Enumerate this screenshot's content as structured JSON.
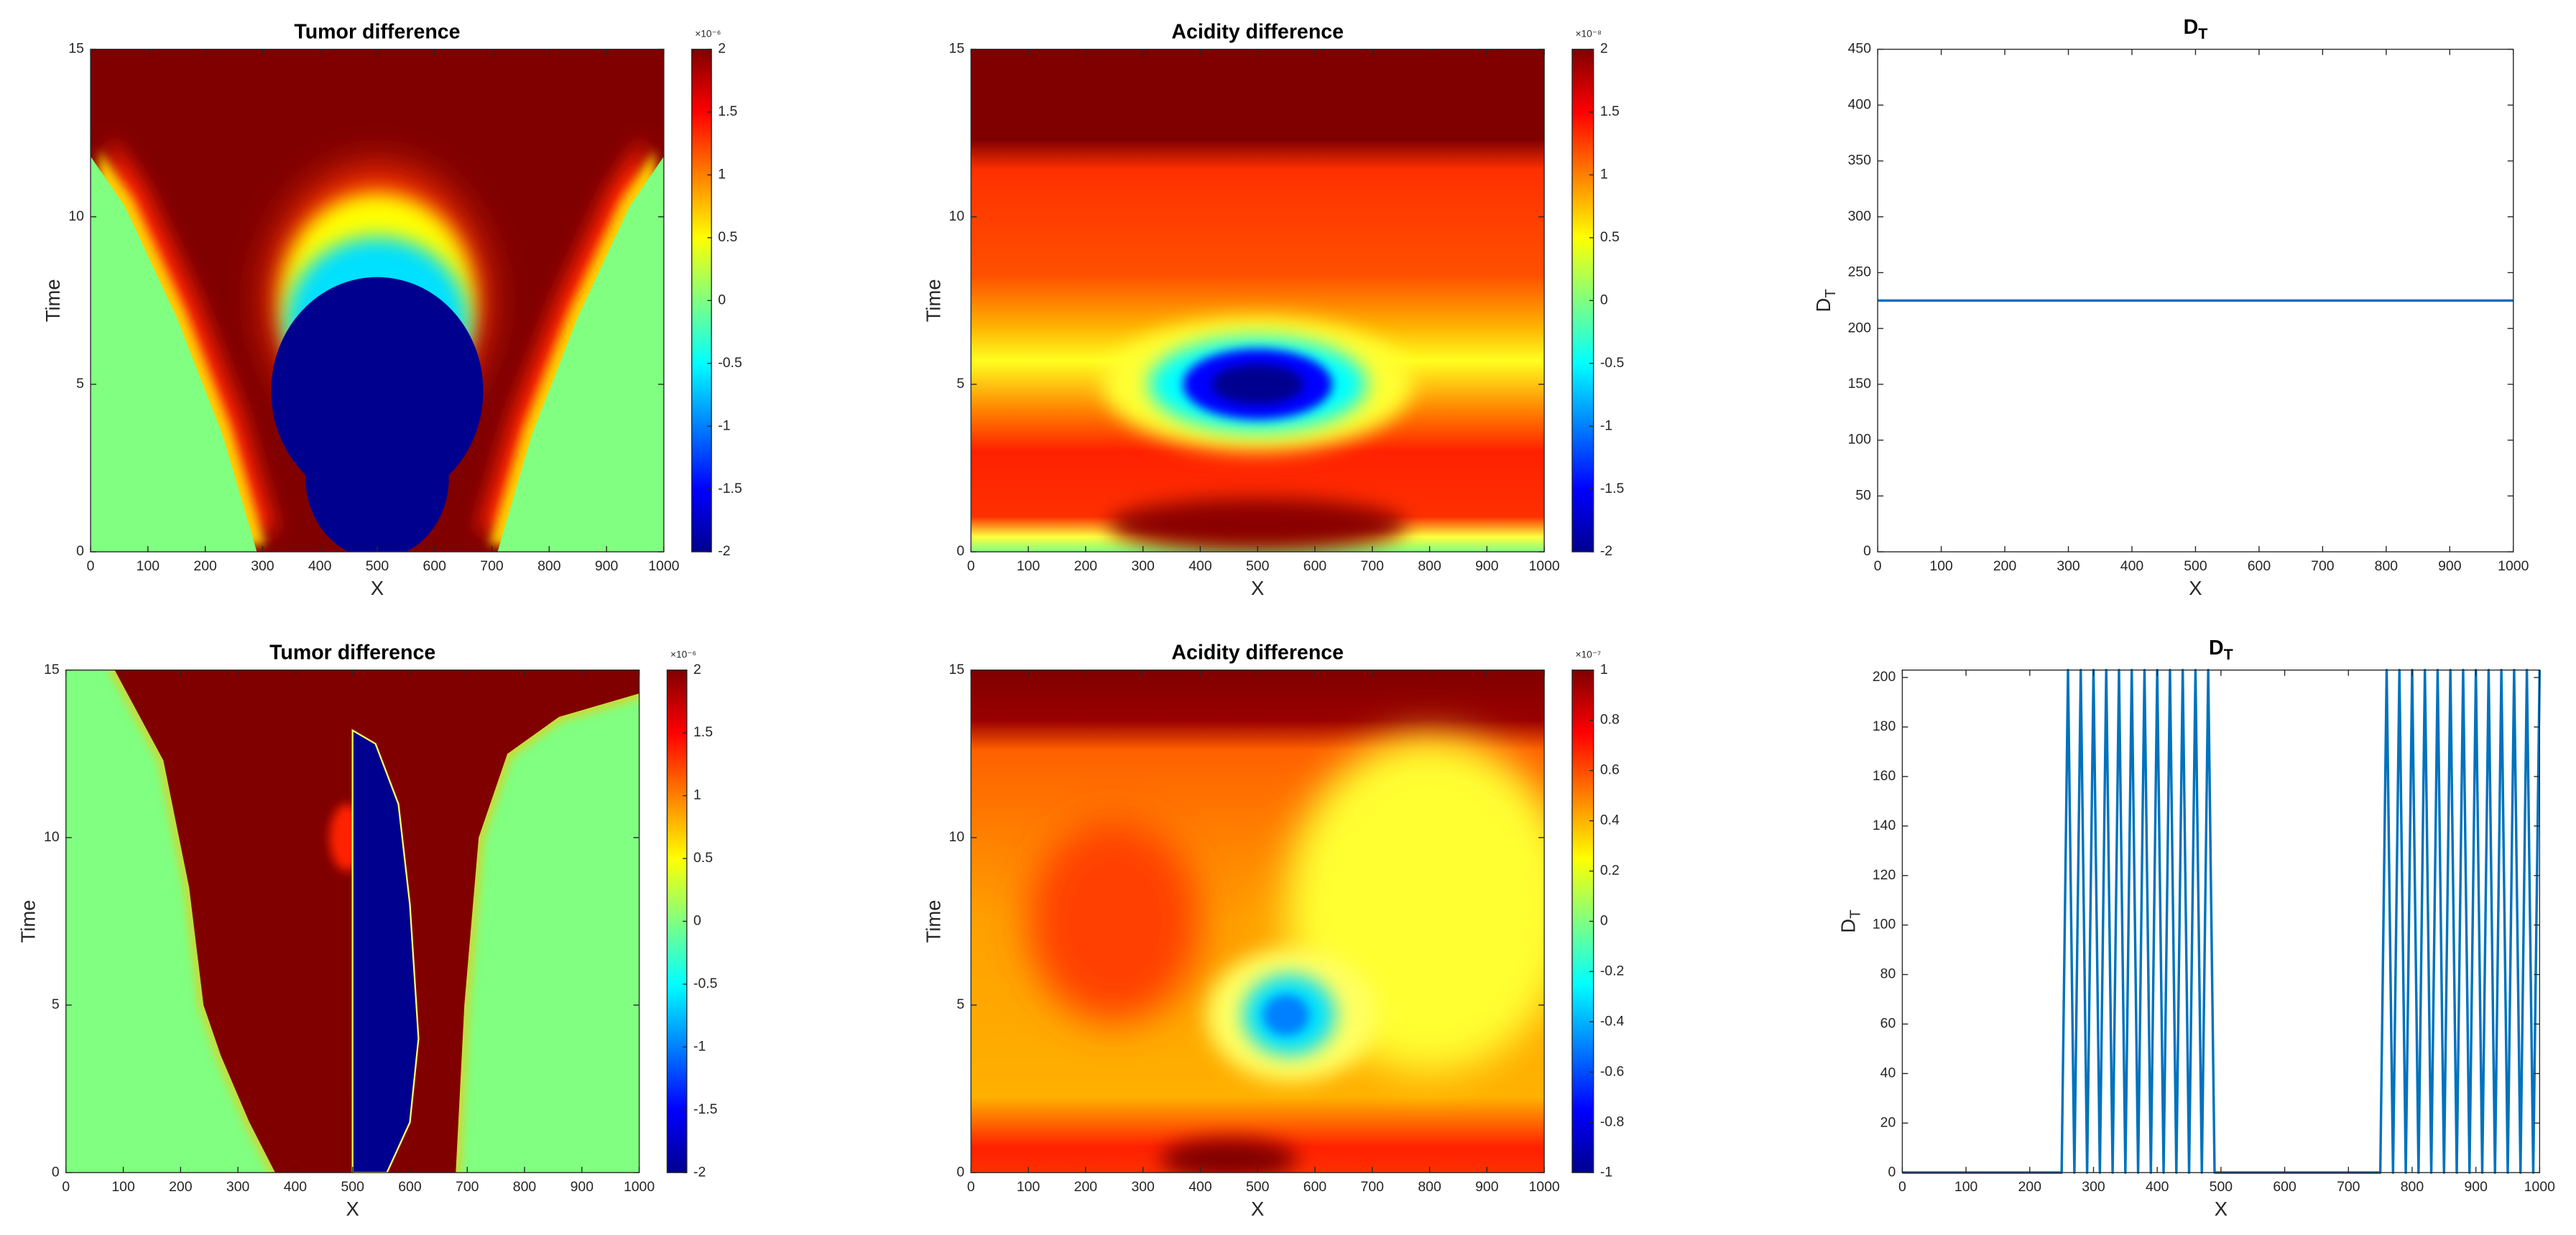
{
  "chart_data": [
    {
      "type": "heatmap",
      "title": "Tumor difference",
      "xlabel": "X",
      "ylabel": "Time",
      "xlim": [
        0,
        1000
      ],
      "ylim": [
        0,
        15
      ],
      "xticks": [
        0,
        100,
        200,
        300,
        400,
        500,
        600,
        700,
        800,
        900,
        1000
      ],
      "yticks": [
        0,
        5,
        10,
        15
      ],
      "clim": [
        -2,
        2
      ],
      "cticks": [
        -2,
        -1.5,
        -1,
        -0.5,
        0,
        0.5,
        1,
        1.5,
        2
      ],
      "colorbar_exponent": "×10⁻⁶"
    },
    {
      "type": "heatmap",
      "title": "Acidity difference",
      "xlabel": "X",
      "ylabel": "Time",
      "xlim": [
        0,
        1000
      ],
      "ylim": [
        0,
        15
      ],
      "xticks": [
        0,
        100,
        200,
        300,
        400,
        500,
        600,
        700,
        800,
        900,
        1000
      ],
      "yticks": [
        0,
        5,
        10,
        15
      ],
      "clim": [
        -2,
        2
      ],
      "cticks": [
        -2,
        -1.5,
        -1,
        -0.5,
        0,
        0.5,
        1,
        1.5,
        2
      ],
      "colorbar_exponent": "×10⁻⁸"
    },
    {
      "type": "line",
      "title": [
        "D",
        "T"
      ],
      "xlabel": "X",
      "ylabel": [
        "D",
        "T"
      ],
      "xlim": [
        0,
        1000
      ],
      "ylim": [
        0,
        450
      ],
      "xticks": [
        0,
        100,
        200,
        300,
        400,
        500,
        600,
        700,
        800,
        900,
        1000
      ],
      "yticks": [
        0,
        50,
        100,
        150,
        200,
        250,
        300,
        350,
        400,
        450
      ],
      "series": [
        {
          "color": "#0072bd",
          "x": [
            0,
            1000
          ],
          "values": [
            225,
            225
          ]
        }
      ]
    },
    {
      "type": "heatmap",
      "title": "Tumor difference",
      "xlabel": "X",
      "ylabel": "Time",
      "xlim": [
        0,
        1000
      ],
      "ylim": [
        0,
        15
      ],
      "xticks": [
        0,
        100,
        200,
        300,
        400,
        500,
        600,
        700,
        800,
        900,
        1000
      ],
      "yticks": [
        0,
        5,
        10,
        15
      ],
      "clim": [
        -2,
        2
      ],
      "cticks": [
        -2,
        -1.5,
        -1,
        -0.5,
        0,
        0.5,
        1,
        1.5,
        2
      ],
      "colorbar_exponent": "×10⁻⁶"
    },
    {
      "type": "heatmap",
      "title": "Acidity difference",
      "xlabel": "X",
      "ylabel": "Time",
      "xlim": [
        0,
        1000
      ],
      "ylim": [
        0,
        15
      ],
      "xticks": [
        0,
        100,
        200,
        300,
        400,
        500,
        600,
        700,
        800,
        900,
        1000
      ],
      "yticks": [
        0,
        5,
        10,
        15
      ],
      "clim": [
        -1,
        1
      ],
      "cticks": [
        -1,
        -0.8,
        -0.6,
        -0.4,
        -0.2,
        0,
        0.2,
        0.4,
        0.6,
        0.8,
        1
      ],
      "colorbar_exponent": "×10⁻⁷"
    },
    {
      "type": "line",
      "title": [
        "D",
        "T"
      ],
      "xlabel": "X",
      "ylabel": [
        "D",
        "T"
      ],
      "xlim": [
        0,
        1000
      ],
      "ylim": [
        0,
        203
      ],
      "xticks": [
        0,
        100,
        200,
        300,
        400,
        500,
        600,
        700,
        800,
        900,
        1000
      ],
      "yticks": [
        0,
        20,
        40,
        60,
        80,
        100,
        120,
        140,
        160,
        180,
        200
      ],
      "series": [
        {
          "color": "#0072bd",
          "x": [
            0,
            250,
            260,
            270,
            280,
            290,
            300,
            310,
            320,
            330,
            340,
            350,
            360,
            370,
            380,
            390,
            400,
            410,
            420,
            430,
            440,
            450,
            460,
            470,
            480,
            490,
            500,
            750,
            760,
            770,
            780,
            790,
            800,
            810,
            820,
            830,
            840,
            850,
            860,
            870,
            880,
            890,
            900,
            910,
            920,
            930,
            940,
            950,
            960,
            970,
            980,
            990,
            1000
          ],
          "values": [
            0,
            0,
            203,
            0,
            203,
            0,
            203,
            0,
            203,
            0,
            203,
            0,
            203,
            0,
            203,
            0,
            203,
            0,
            203,
            0,
            203,
            0,
            203,
            0,
            203,
            0,
            0,
            0,
            203,
            0,
            203,
            0,
            203,
            0,
            203,
            0,
            203,
            0,
            203,
            0,
            203,
            0,
            203,
            0,
            203,
            0,
            203,
            0,
            203,
            0,
            203,
            0,
            203
          ]
        }
      ]
    }
  ]
}
